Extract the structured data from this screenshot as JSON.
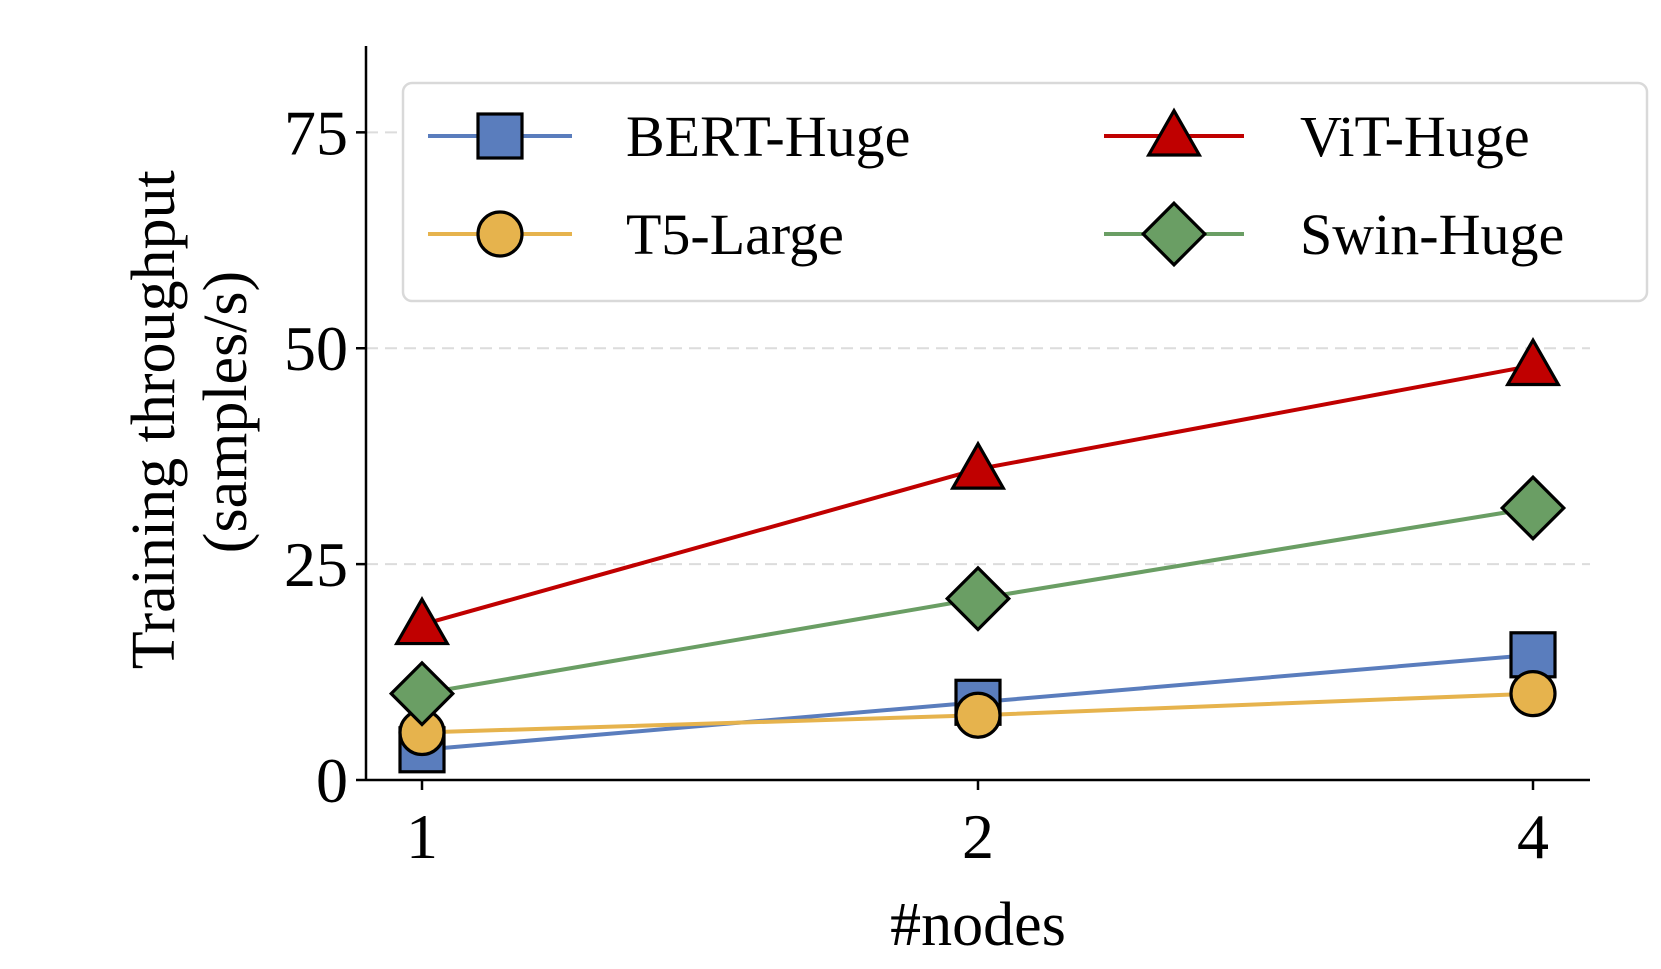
{
  "chart_data": {
    "type": "line",
    "title": "",
    "xlabel": "#nodes",
    "ylabel_lines": [
      "Training throughput",
      "(samples/s)"
    ],
    "categories": [
      "1",
      "2",
      "4"
    ],
    "yticks": [
      0,
      25,
      50,
      75
    ],
    "ylim": [
      0,
      85
    ],
    "grid": "y-dashed",
    "legend_position": "top",
    "series": [
      {
        "name": "BERT-Huge",
        "marker": "square",
        "color": "#5a7dbd",
        "values": [
          3.5,
          9,
          14.5
        ]
      },
      {
        "name": "ViT-Huge",
        "marker": "triangle",
        "color": "#c00000",
        "values": [
          18,
          36,
          48
        ]
      },
      {
        "name": "T5-Large",
        "marker": "circle",
        "color": "#e6b34d",
        "values": [
          5.5,
          7.5,
          10
        ]
      },
      {
        "name": "Swin-Huge",
        "marker": "diamond",
        "color": "#6a9e64",
        "values": [
          10,
          21,
          31.5
        ]
      }
    ]
  }
}
